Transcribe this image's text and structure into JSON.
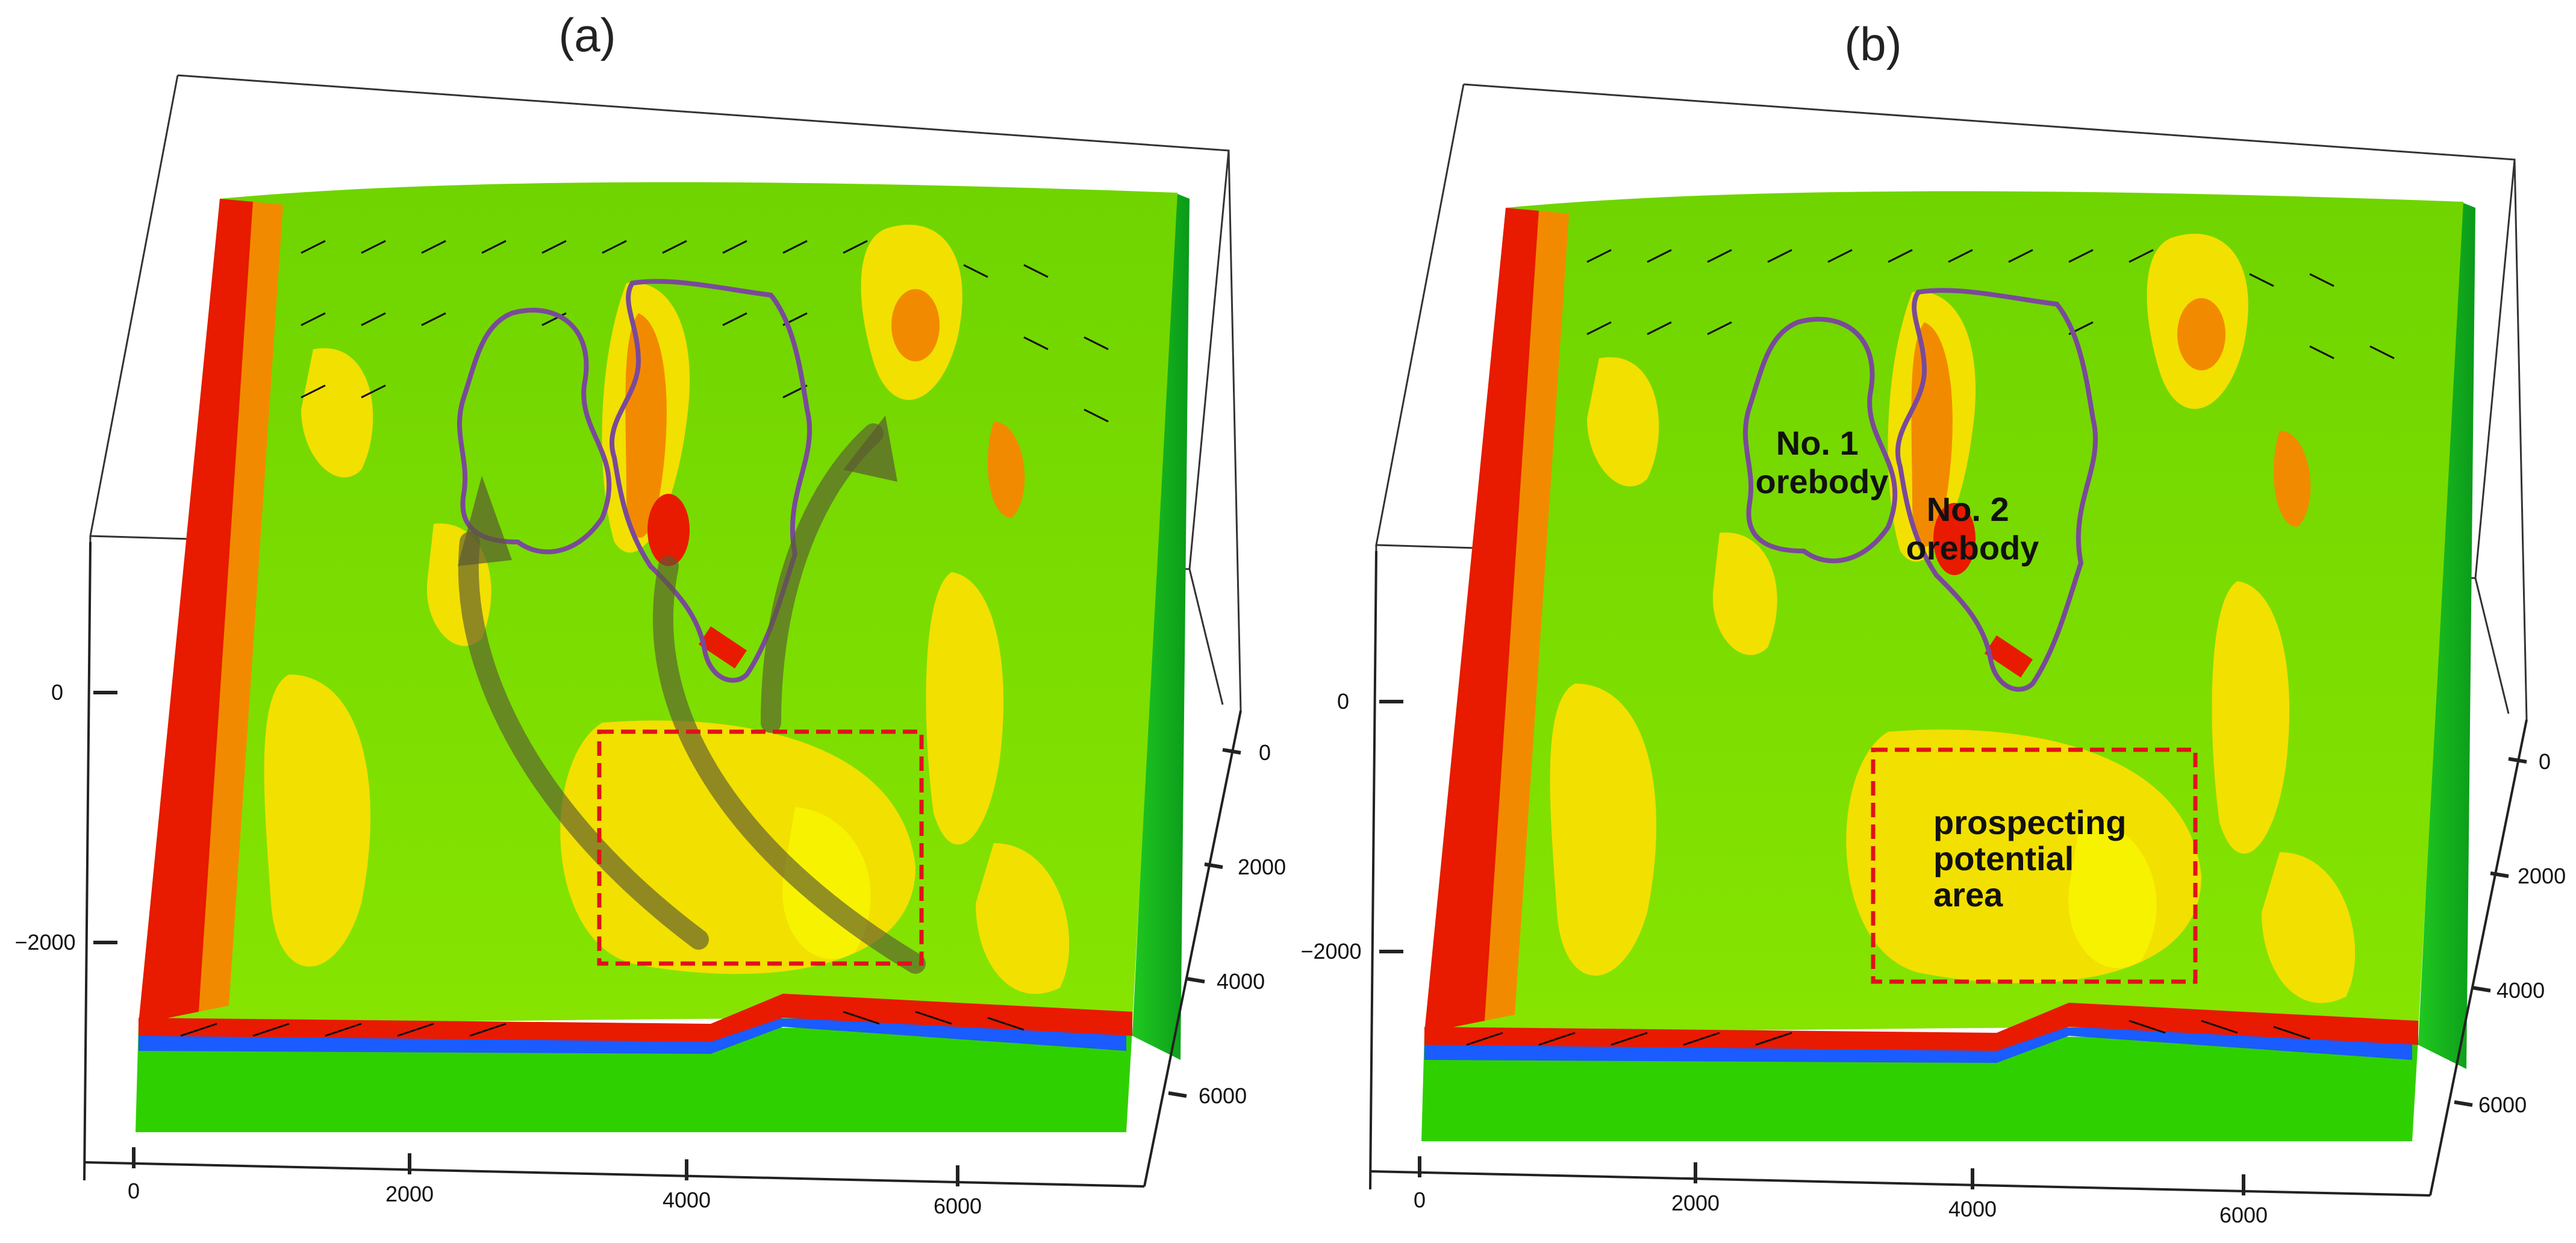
{
  "panels": [
    {
      "id": "a",
      "title": "(a)",
      "z_ticks": [
        "0",
        "−2000"
      ],
      "x_ticks": [
        "0",
        "2000",
        "4000",
        "6000"
      ],
      "y_ticks": [
        "0",
        "2000",
        "4000",
        "6000"
      ],
      "annotations": []
    },
    {
      "id": "b",
      "title": "(b)",
      "z_ticks": [
        "0",
        "−2000"
      ],
      "x_ticks": [
        "0",
        "2000",
        "4000",
        "6000"
      ],
      "y_ticks": [
        "0",
        "2000",
        "4000",
        "6000"
      ],
      "annotations": [
        {
          "lines": [
            "No. 1",
            "orebody"
          ]
        },
        {
          "lines": [
            "No. 2",
            "orebody"
          ]
        },
        {
          "lines": [
            "prospecting",
            "potential",
            "area"
          ]
        }
      ]
    }
  ],
  "colors": {
    "background_green": "#7ee000",
    "mid_green": "#4fcf00",
    "yellow": "#f2e000",
    "orange": "#f28a00",
    "red": "#e81a00",
    "blue_layer": "#1a5cff",
    "side_green": "#12b820",
    "orebody_outline": "#7a4a9a",
    "potential_box": "#e0121a",
    "flow_path": "#6b6b3a"
  }
}
